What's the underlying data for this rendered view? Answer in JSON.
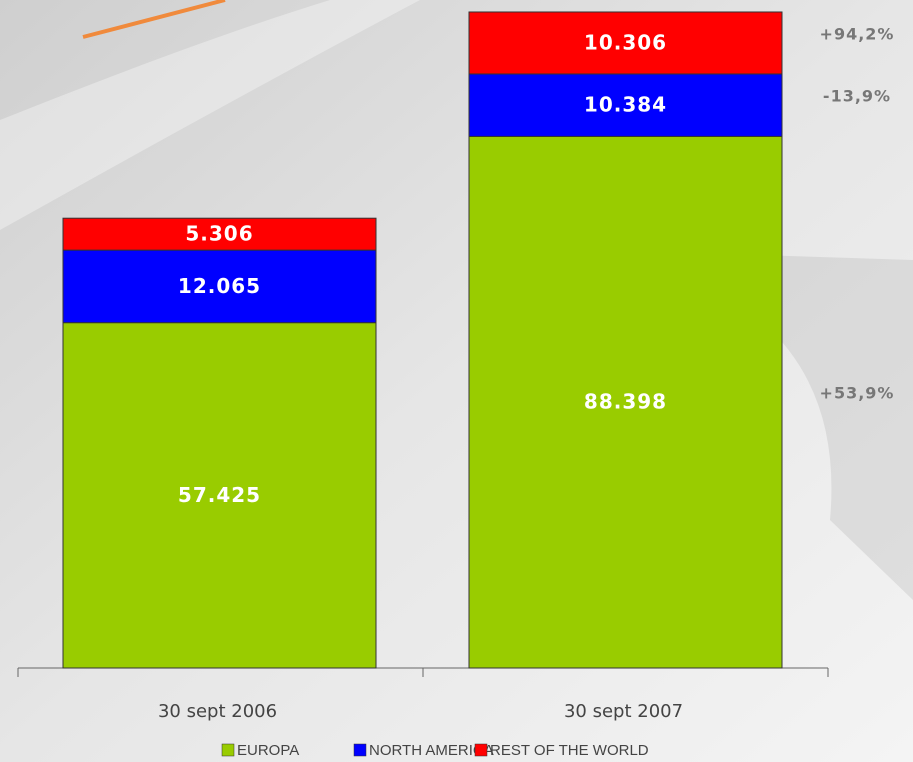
{
  "chart_data": {
    "type": "stacked_bar",
    "categories": [
      "30 sept 2006",
      "30 sept 2007"
    ],
    "series": [
      {
        "name": "EUROPA",
        "color": "#99cc00",
        "values": [
          57425,
          88398
        ],
        "value_labels": [
          "57.425",
          "88.398"
        ],
        "change": "+53,9%"
      },
      {
        "name": "NORTH AMERICA",
        "color": "#0000ff",
        "values": [
          12065,
          10384
        ],
        "value_labels": [
          "12.065",
          "10.384"
        ],
        "change": "-13,9%"
      },
      {
        "name": "REST OF THE WORLD",
        "color": "#ff0000",
        "values": [
          5306,
          10306
        ],
        "value_labels": [
          "5.306",
          "10.306"
        ],
        "change": "+94,2%"
      }
    ],
    "ylim": [
      0,
      110000
    ]
  }
}
